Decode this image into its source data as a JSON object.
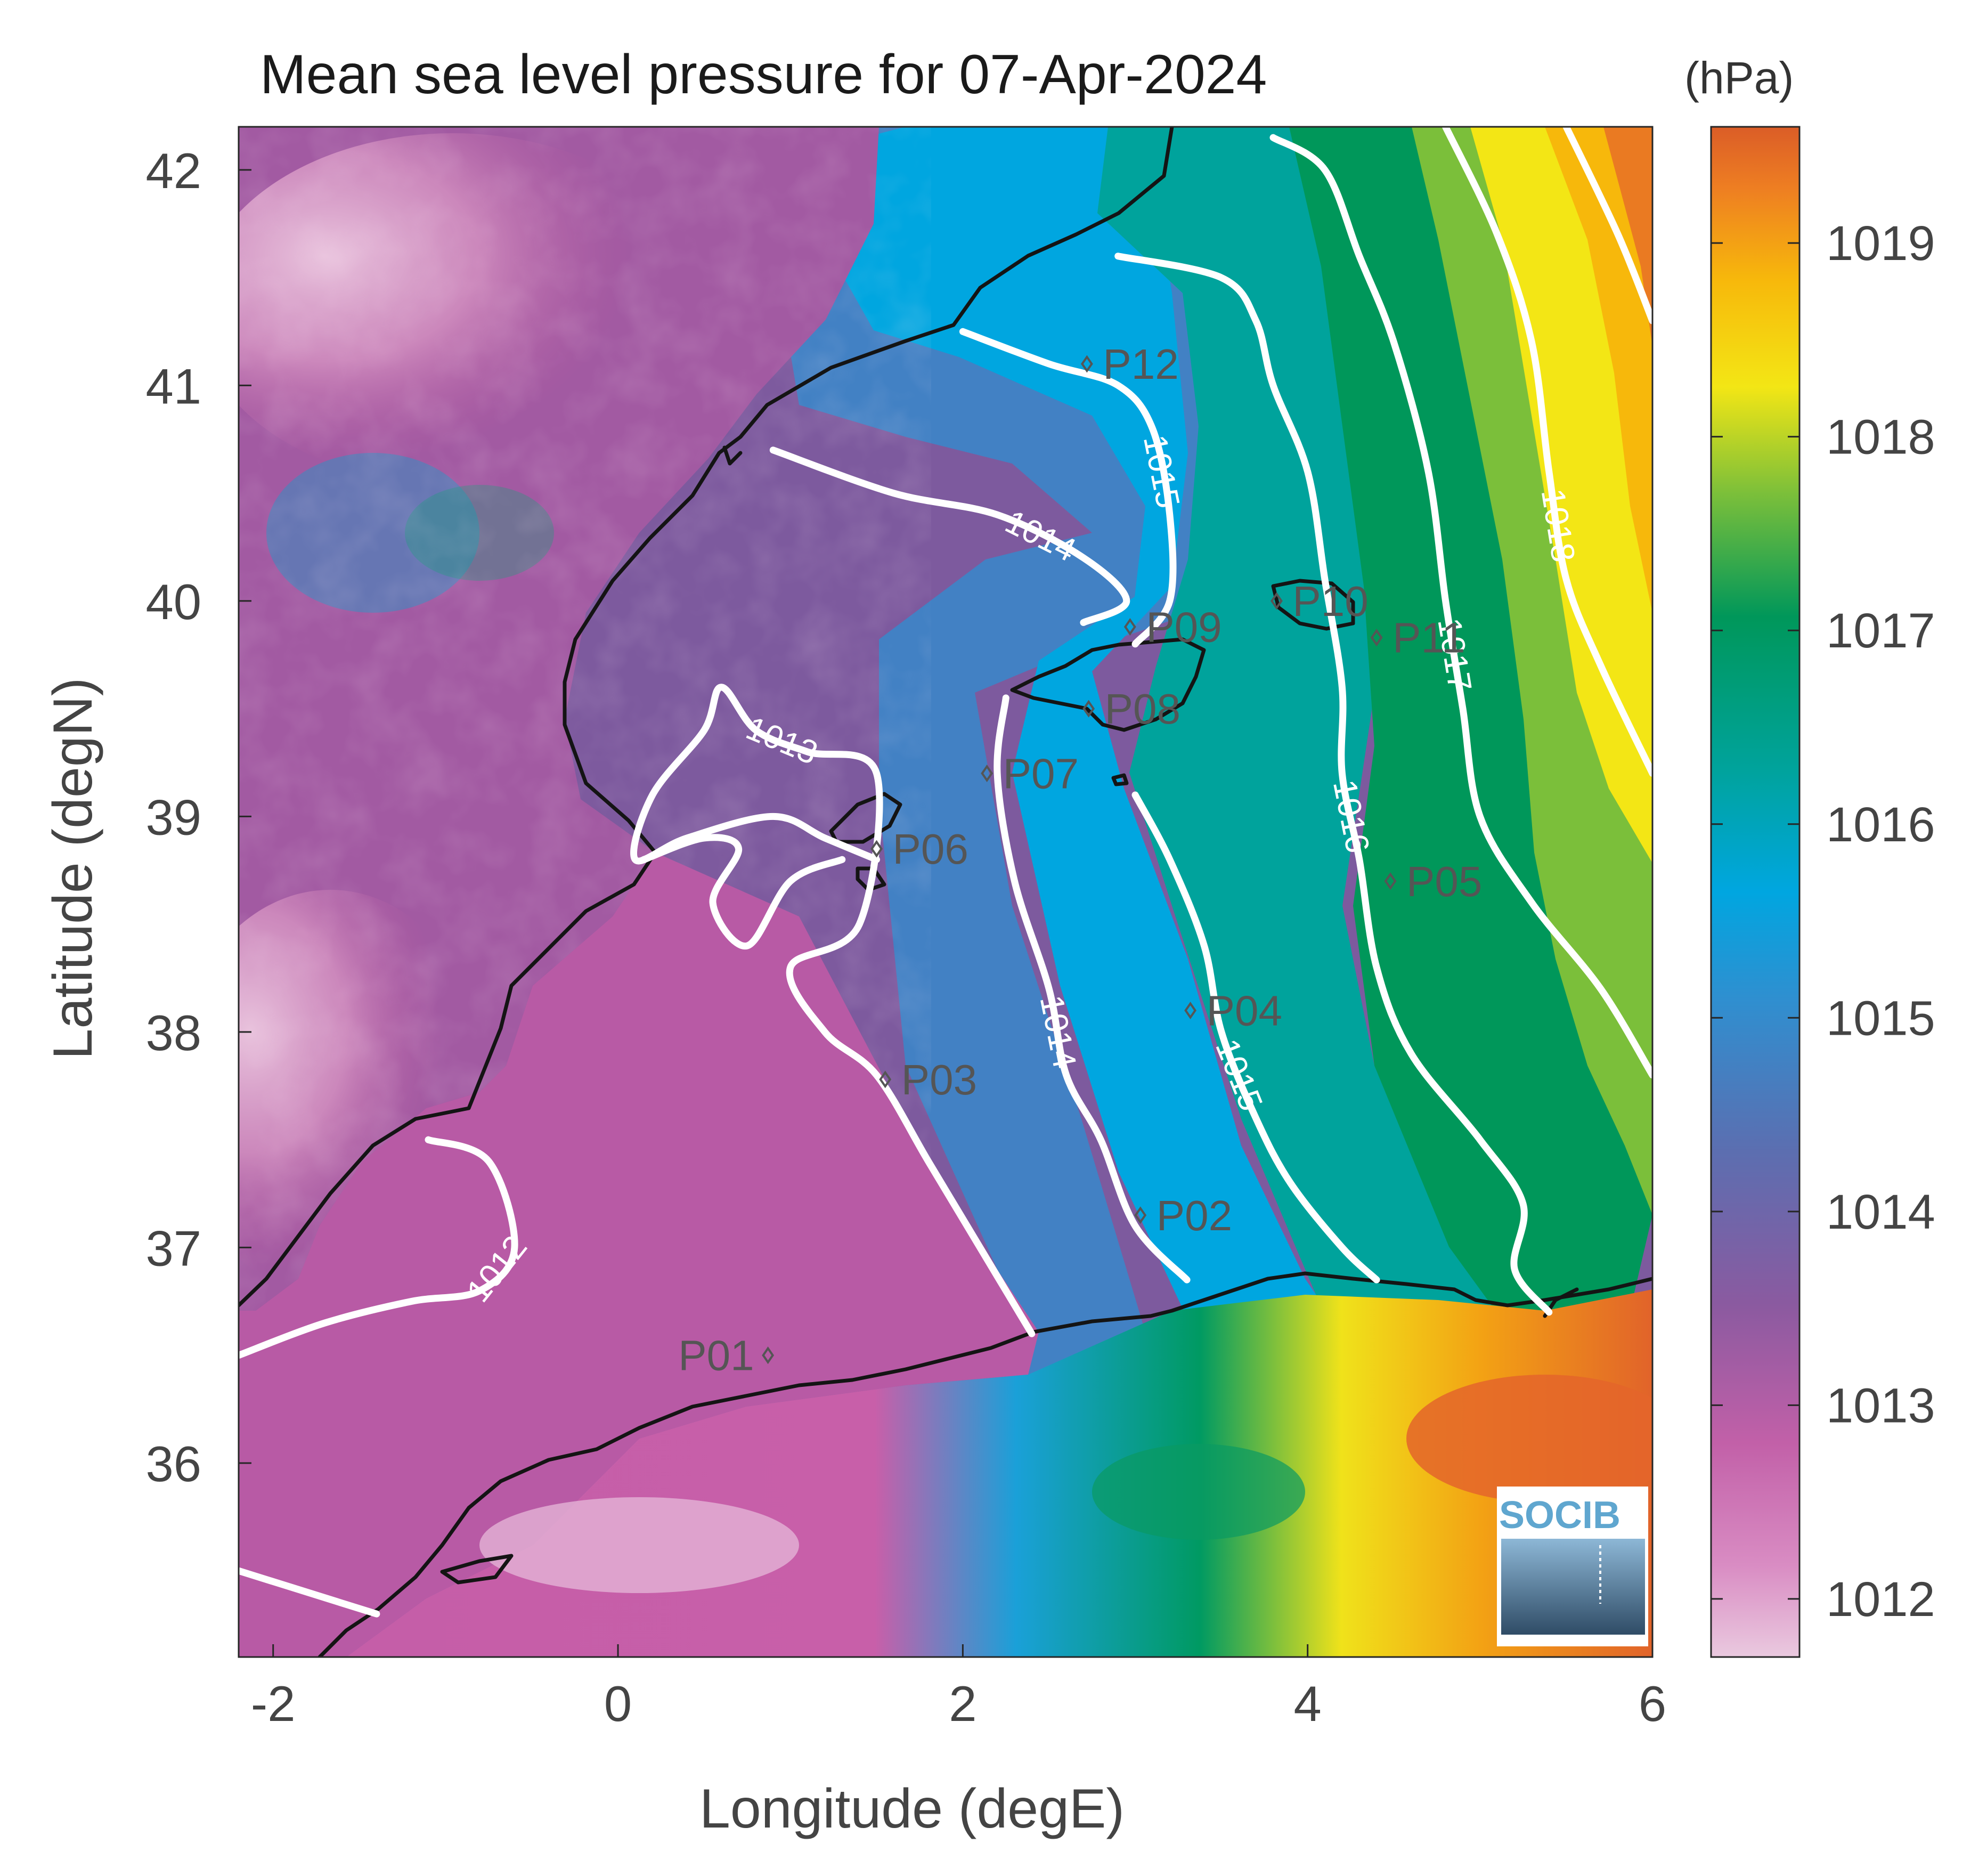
{
  "chart_data": {
    "type": "heatmap",
    "title": "Mean sea level pressure for 07-Apr-2024",
    "xlabel": "Longitude (degE)",
    "ylabel": "Latitude (degN)",
    "xlim": [
      -2.2,
      6
    ],
    "ylim": [
      35.1,
      42.2
    ],
    "xticks": [
      -2,
      0,
      2,
      4,
      6
    ],
    "yticks": [
      36,
      37,
      38,
      39,
      40,
      41,
      42
    ],
    "colorbar": {
      "units": "(hPa)",
      "range": [
        1011.7,
        1019.6
      ],
      "ticks": [
        1012,
        1013,
        1014,
        1015,
        1016,
        1017,
        1018,
        1019
      ],
      "colormap": [
        "#e8c4dd",
        "#c560a8",
        "#7d5a9e",
        "#3b84c4",
        "#00a6e0",
        "#00a09a",
        "#00975a",
        "#7bbf3a",
        "#f3e615",
        "#f7b80b",
        "#ee7e22",
        "#db5d27"
      ]
    },
    "contours": [
      {
        "level": 1012,
        "label": "1012",
        "points": [
          [
            -2.2,
            36.5
          ],
          [
            -1.7,
            36.65
          ],
          [
            -1.2,
            36.75
          ],
          [
            -0.8,
            36.8
          ],
          [
            -0.6,
            37.0
          ],
          [
            -0.75,
            37.4
          ],
          [
            -1.1,
            37.5
          ]
        ]
      },
      {
        "level": 1013,
        "label": "1013",
        "points": [
          [
            1.5,
            38.8
          ],
          [
            1.2,
            38.9
          ],
          [
            0.9,
            39.0
          ],
          [
            0.4,
            38.9
          ],
          [
            0.1,
            38.8
          ],
          [
            0.2,
            39.1
          ],
          [
            0.5,
            39.4
          ],
          [
            0.6,
            39.6
          ],
          [
            0.8,
            39.4
          ],
          [
            1.1,
            39.3
          ],
          [
            1.5,
            39.2
          ],
          [
            1.4,
            38.5
          ],
          [
            1.0,
            38.3
          ],
          [
            1.2,
            38.0
          ],
          [
            1.5,
            37.8
          ],
          [
            1.8,
            37.4
          ],
          [
            2.1,
            37.0
          ],
          [
            2.4,
            36.6
          ]
        ]
      },
      {
        "level": 1013,
        "label": "",
        "points": [
          [
            0.15,
            38.8
          ],
          [
            0.5,
            38.9
          ],
          [
            0.7,
            38.85
          ],
          [
            0.55,
            38.6
          ],
          [
            0.75,
            38.4
          ],
          [
            1.0,
            38.7
          ],
          [
            1.3,
            38.8
          ]
        ]
      },
      {
        "level": 1014,
        "label": "1014",
        "points": [
          [
            0.9,
            40.7
          ],
          [
            1.6,
            40.5
          ],
          [
            2.2,
            40.4
          ],
          [
            2.7,
            40.2
          ],
          [
            2.95,
            40.0
          ],
          [
            2.7,
            39.9
          ]
        ]
      },
      {
        "level": 1014,
        "label": "1014",
        "points": [
          [
            2.25,
            39.55
          ],
          [
            2.2,
            39.2
          ],
          [
            2.3,
            38.7
          ],
          [
            2.5,
            38.2
          ],
          [
            2.6,
            37.8
          ],
          [
            2.8,
            37.5
          ],
          [
            3.0,
            37.1
          ],
          [
            3.3,
            36.85
          ]
        ]
      },
      {
        "level": 1015,
        "label": "1015",
        "points": [
          [
            2.0,
            41.25
          ],
          [
            2.5,
            41.1
          ],
          [
            2.9,
            41.0
          ],
          [
            3.1,
            40.8
          ],
          [
            3.2,
            40.4
          ],
          [
            3.2,
            40.0
          ],
          [
            3.0,
            39.8
          ]
        ]
      },
      {
        "level": 1015,
        "label": "1015",
        "points": [
          [
            3.0,
            39.1
          ],
          [
            3.2,
            38.8
          ],
          [
            3.4,
            38.4
          ],
          [
            3.5,
            38.0
          ],
          [
            3.7,
            37.6
          ],
          [
            3.9,
            37.3
          ],
          [
            4.2,
            37.0
          ],
          [
            4.4,
            36.85
          ]
        ]
      },
      {
        "level": 1016,
        "label": "1016",
        "points": [
          [
            2.9,
            41.6
          ],
          [
            3.5,
            41.5
          ],
          [
            3.7,
            41.3
          ],
          [
            3.8,
            41.0
          ],
          [
            4.0,
            40.6
          ],
          [
            4.1,
            40.1
          ],
          [
            4.2,
            39.6
          ],
          [
            4.2,
            39.2
          ],
          [
            4.3,
            38.8
          ],
          [
            4.4,
            38.3
          ],
          [
            4.6,
            37.9
          ],
          [
            5.0,
            37.5
          ],
          [
            5.25,
            37.2
          ],
          [
            5.2,
            36.9
          ],
          [
            5.4,
            36.7
          ]
        ]
      },
      {
        "level": 1017,
        "label": "1017",
        "points": [
          [
            3.8,
            42.15
          ],
          [
            4.1,
            42.0
          ],
          [
            4.3,
            41.6
          ],
          [
            4.5,
            41.2
          ],
          [
            4.7,
            40.6
          ],
          [
            4.8,
            40.0
          ],
          [
            4.9,
            39.5
          ],
          [
            5.0,
            39.0
          ],
          [
            5.3,
            38.6
          ],
          [
            5.7,
            38.2
          ],
          [
            6.0,
            37.8
          ]
        ]
      },
      {
        "level": 1018,
        "label": "1018",
        "points": [
          [
            4.8,
            42.2
          ],
          [
            5.1,
            41.7
          ],
          [
            5.3,
            41.2
          ],
          [
            5.4,
            40.6
          ],
          [
            5.5,
            40.1
          ],
          [
            5.7,
            39.7
          ],
          [
            6.0,
            39.2
          ]
        ]
      },
      {
        "level": 1019,
        "label": "",
        "points": [
          [
            5.5,
            42.2
          ],
          [
            5.8,
            41.7
          ],
          [
            6.0,
            41.3
          ]
        ]
      },
      {
        "level": 1012,
        "label": "",
        "points": [
          [
            -2.2,
            35.5
          ],
          [
            -1.6,
            35.35
          ],
          [
            -1.4,
            35.3
          ]
        ]
      }
    ],
    "stations": [
      {
        "id": "P01",
        "lon": 0.87,
        "lat": 36.5
      },
      {
        "id": "P02",
        "lon": 3.03,
        "lat": 37.15
      },
      {
        "id": "P03",
        "lon": 1.55,
        "lat": 37.78
      },
      {
        "id": "P04",
        "lon": 3.32,
        "lat": 38.1
      },
      {
        "id": "P05",
        "lon": 4.48,
        "lat": 38.7
      },
      {
        "id": "P06",
        "lon": 1.5,
        "lat": 38.85
      },
      {
        "id": "P07",
        "lon": 2.14,
        "lat": 39.2
      },
      {
        "id": "P08",
        "lon": 2.73,
        "lat": 39.5
      },
      {
        "id": "P09",
        "lon": 2.97,
        "lat": 39.88
      },
      {
        "id": "P10",
        "lon": 3.82,
        "lat": 40.0
      },
      {
        "id": "P11",
        "lon": 4.4,
        "lat": 39.83
      },
      {
        "id": "P12",
        "lon": 2.72,
        "lat": 41.1
      }
    ]
  },
  "logo": {
    "text": "SOCIB"
  }
}
